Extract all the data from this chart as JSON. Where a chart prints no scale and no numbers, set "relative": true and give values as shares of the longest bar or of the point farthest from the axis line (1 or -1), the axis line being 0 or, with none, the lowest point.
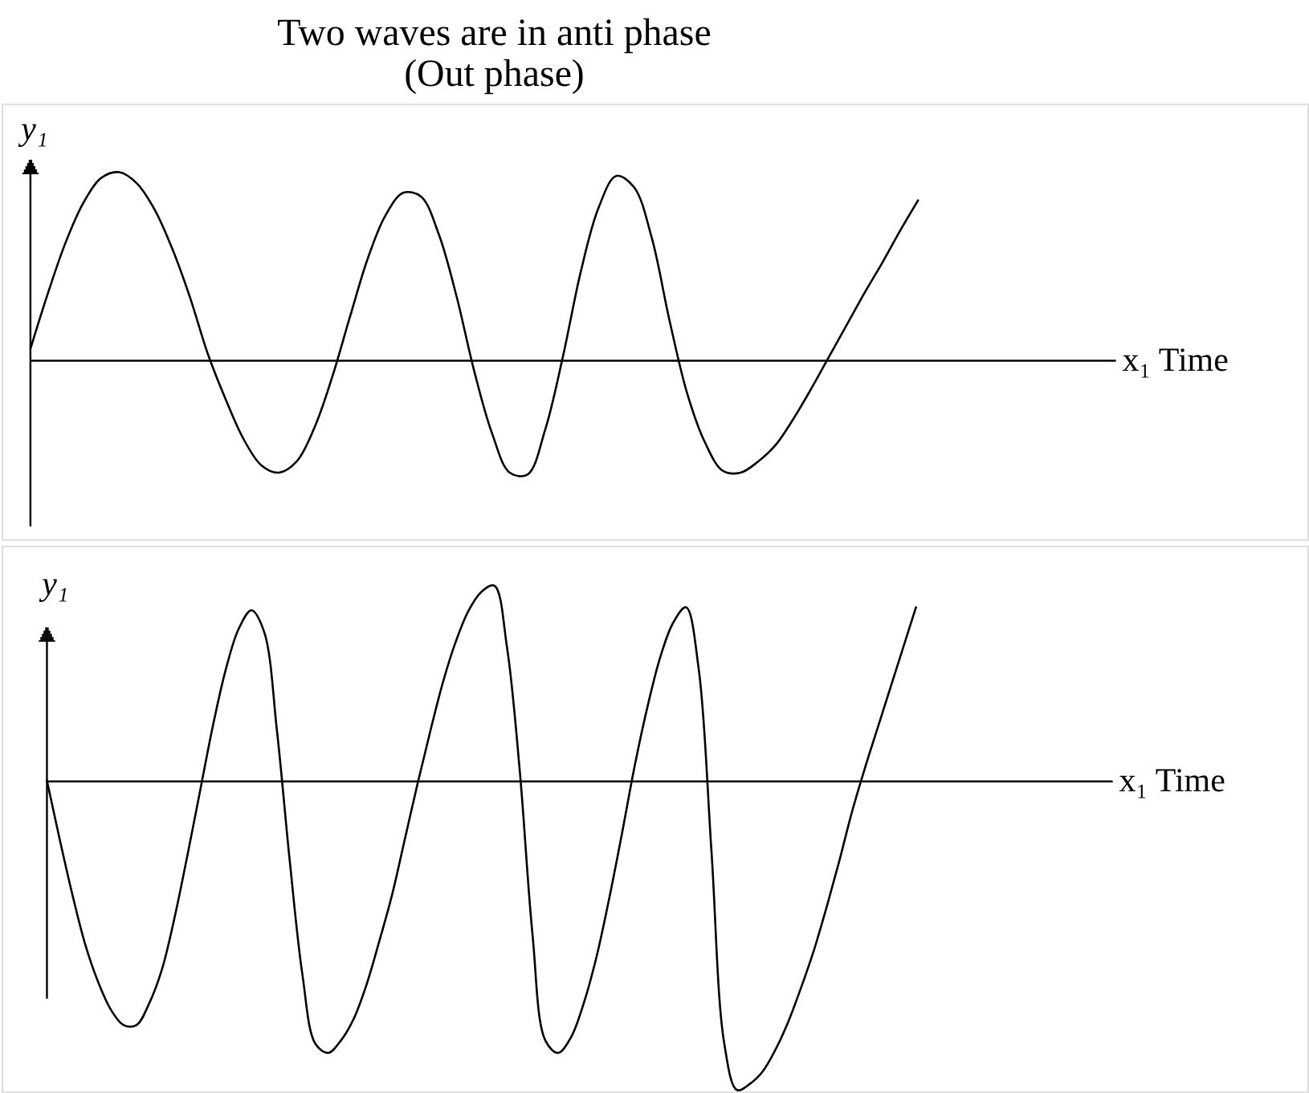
{
  "chart_data": [
    {
      "type": "line",
      "title": "Two waves are in anti phase",
      "subtitle": "(Out phase)",
      "xlabel": "x₁ Time",
      "ylabel": "y₁",
      "relative": true,
      "categories": [
        null,
        null,
        null,
        null,
        null,
        null,
        null,
        null,
        null,
        null,
        null,
        null,
        null,
        null,
        null,
        null,
        null,
        null,
        null,
        null,
        null,
        null,
        null,
        null,
        null,
        null,
        null,
        null,
        null,
        null,
        null,
        null,
        null,
        null,
        null,
        null,
        null,
        null,
        null,
        null,
        null,
        null,
        null,
        null,
        null,
        null,
        null,
        null,
        null,
        null,
        null
      ],
      "series": [
        {
          "color": "#000000",
          "values": [
            0.06,
            0.36,
            0.63,
            0.84,
            0.97,
            1.0,
            0.94,
            0.8,
            0.59,
            0.33,
            0.03,
            -0.21,
            -0.42,
            -0.56,
            -0.6,
            -0.54,
            -0.36,
            -0.09,
            0.23,
            0.54,
            0.77,
            0.89,
            0.87,
            0.67,
            0.34,
            -0.06,
            -0.39,
            -0.6,
            -0.61,
            -0.37,
            0.02,
            0.47,
            0.81,
            0.98,
            0.92,
            0.65,
            0.21,
            -0.18,
            -0.44,
            -0.59,
            -0.6,
            -0.54,
            -0.45,
            -0.31,
            -0.15,
            0.02,
            0.19,
            0.36,
            0.52,
            0.69,
            0.85
          ]
        }
      ]
    },
    {
      "type": "line",
      "xlabel": "x₁ Time",
      "ylabel": "y₁",
      "relative": true,
      "categories": [
        null,
        null,
        null,
        null,
        null,
        null,
        null,
        null,
        null,
        null,
        null,
        null,
        null,
        null,
        null,
        null,
        null,
        null,
        null,
        null,
        null,
        null,
        null,
        null,
        null,
        null,
        null,
        null,
        null,
        null,
        null,
        null,
        null,
        null,
        null,
        null,
        null,
        null,
        null,
        null,
        null,
        null,
        null,
        null,
        null,
        null,
        null,
        null,
        null,
        null,
        null,
        null,
        null,
        null,
        null,
        null,
        null,
        null,
        null,
        null,
        null,
        null,
        null,
        null,
        null,
        null,
        null,
        null,
        null
      ],
      "series": [
        {
          "color": "#000000",
          "values": [
            0,
            -0.19,
            -0.37,
            -0.53,
            -0.65,
            -0.74,
            -0.79,
            -0.79,
            -0.72,
            -0.61,
            -0.44,
            -0.24,
            -0.03,
            0.18,
            0.36,
            0.49,
            0.55,
            0.48,
            0.16,
            -0.26,
            -0.63,
            -0.85,
            -0.88,
            -0.84,
            -0.77,
            -0.66,
            -0.52,
            -0.37,
            -0.19,
            -0.01,
            0.16,
            0.32,
            0.45,
            0.55,
            0.61,
            0.63,
            0.43,
            0.03,
            -0.5,
            -0.84,
            -0.88,
            -0.83,
            -0.72,
            -0.57,
            -0.38,
            -0.17,
            0.05,
            0.24,
            0.4,
            0.51,
            0.56,
            0.36,
            -0.23,
            -0.85,
            -1.0,
            -0.98,
            -0.94,
            -0.87,
            -0.78,
            -0.67,
            -0.55,
            -0.41,
            -0.26,
            -0.1,
            0.04,
            0.17,
            0.3,
            0.43,
            0.56
          ]
        }
      ]
    }
  ]
}
